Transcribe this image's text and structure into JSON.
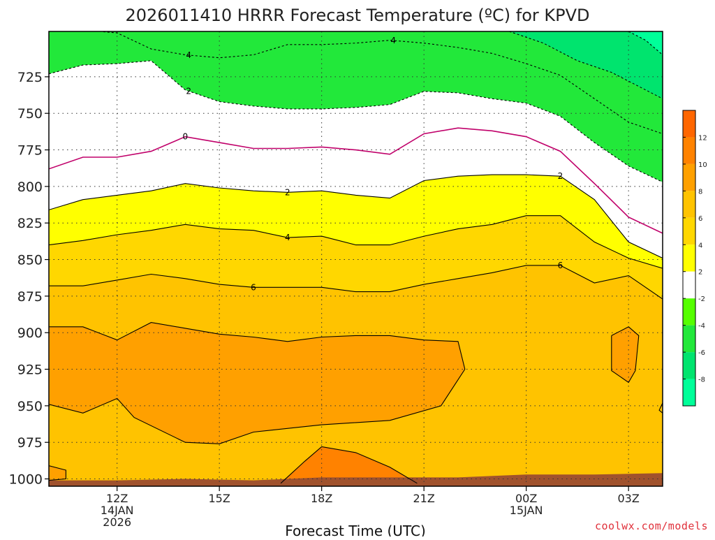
{
  "chart_data": {
    "type": "contour",
    "title": "2026011410 HRRR Forecast Temperature (ºC) for KPVD",
    "xlabel": "Forecast Time (UTC)",
    "ylabel": "",
    "x_axis": {
      "range_hours_since_12Z": [
        -2.0,
        16.0
      ],
      "ticks": [
        {
          "hour": 0,
          "lines": [
            "12Z",
            "14JAN",
            "2026"
          ]
        },
        {
          "hour": 3,
          "lines": [
            "15Z"
          ]
        },
        {
          "hour": 6,
          "lines": [
            "18Z"
          ]
        },
        {
          "hour": 9,
          "lines": [
            "21Z"
          ]
        },
        {
          "hour": 12,
          "lines": [
            "00Z",
            "15JAN"
          ]
        },
        {
          "hour": 15,
          "lines": [
            "03Z"
          ]
        }
      ]
    },
    "y_axis": {
      "quantity": "pressure (hPa)",
      "range_top_to_bottom": [
        694,
        1005
      ],
      "ticks": [
        725,
        750,
        775,
        800,
        825,
        850,
        875,
        900,
        925,
        950,
        975,
        1000
      ]
    },
    "grid": "dotted",
    "colorbar": {
      "placement": "right",
      "bins": [
        {
          "lo": -10,
          "hi": -8,
          "color": "#00ff99"
        },
        {
          "lo": -8,
          "hi": -6,
          "color": "#00e46e"
        },
        {
          "lo": -6,
          "hi": -4,
          "color": "#22e83a"
        },
        {
          "lo": -4,
          "hi": -2,
          "color": "#55ff00"
        },
        {
          "lo": -2,
          "hi": 2,
          "color": "#ffffff"
        },
        {
          "lo": 2,
          "hi": 4,
          "color": "#ffff00"
        },
        {
          "lo": 4,
          "hi": 6,
          "color": "#ffd700"
        },
        {
          "lo": 6,
          "hi": 8,
          "color": "#ffc300"
        },
        {
          "lo": 8,
          "hi": 10,
          "color": "#ffa000"
        },
        {
          "lo": 10,
          "hi": 12,
          "color": "#ff8200"
        },
        {
          "lo": 12,
          "hi": 14,
          "color": "#ff6600"
        }
      ],
      "tick_labels": [
        "-8",
        "-6",
        "-4",
        "-2",
        "2",
        "4",
        "6",
        "8",
        "10",
        "12"
      ]
    },
    "contours": [
      {
        "level": -6,
        "style": "dashed",
        "label": "",
        "points": [
          [
            11.5,
            694
          ],
          [
            12.5,
            702
          ],
          [
            13.5,
            714
          ],
          [
            14.5,
            722
          ],
          [
            15.5,
            734
          ],
          [
            16.0,
            740
          ]
        ]
      },
      {
        "level": -4,
        "style": "dashed",
        "label": "",
        "points": [
          [
            15.0,
            694
          ],
          [
            15.5,
            700
          ],
          [
            16.0,
            710
          ]
        ]
      },
      {
        "level": -4,
        "style": "dashed",
        "label": "4",
        "points": [
          [
            -2.0,
            694
          ],
          [
            -1.0,
            693
          ],
          [
            0.0,
            695
          ],
          [
            1.0,
            706
          ],
          [
            2.0,
            710
          ],
          [
            3.0,
            712
          ],
          [
            4.0,
            710
          ],
          [
            5.0,
            703
          ],
          [
            6.0,
            703
          ],
          [
            7.0,
            702
          ],
          [
            8.0,
            700
          ],
          [
            9.0,
            702
          ],
          [
            10.0,
            705
          ],
          [
            11.0,
            709
          ],
          [
            12.0,
            716
          ],
          [
            13.0,
            724
          ],
          [
            14.0,
            740
          ],
          [
            15.0,
            756
          ],
          [
            16.0,
            764
          ]
        ]
      },
      {
        "level": -2,
        "style": "dashed",
        "label": "2",
        "points": [
          [
            -2.0,
            723
          ],
          [
            -1.0,
            717
          ],
          [
            0.0,
            716
          ],
          [
            1.0,
            714
          ],
          [
            2.0,
            734
          ],
          [
            3.0,
            742
          ],
          [
            4.0,
            745
          ],
          [
            5.0,
            747
          ],
          [
            6.0,
            747
          ],
          [
            7.0,
            746
          ],
          [
            8.0,
            744
          ],
          [
            9.0,
            735
          ],
          [
            10.0,
            736
          ],
          [
            11.0,
            740
          ],
          [
            12.0,
            743
          ],
          [
            13.0,
            752
          ],
          [
            14.0,
            770
          ],
          [
            15.0,
            786
          ],
          [
            16.0,
            797
          ]
        ]
      },
      {
        "level": 0,
        "style": "solid",
        "label": "0",
        "points": [
          [
            -2.0,
            788
          ],
          [
            -1.0,
            780
          ],
          [
            0.0,
            780
          ],
          [
            1.0,
            776
          ],
          [
            2.0,
            766
          ],
          [
            3.0,
            770
          ],
          [
            4.0,
            774
          ],
          [
            5.0,
            774
          ],
          [
            6.0,
            773
          ],
          [
            7.0,
            775
          ],
          [
            8.0,
            778
          ],
          [
            9.0,
            764
          ],
          [
            10.0,
            760
          ],
          [
            11.0,
            762
          ],
          [
            12.0,
            766
          ],
          [
            13.0,
            776
          ],
          [
            14.0,
            798
          ],
          [
            15.0,
            821
          ],
          [
            16.0,
            832
          ]
        ]
      },
      {
        "level": 2,
        "style": "solid",
        "label": "2",
        "points": [
          [
            -2.0,
            816
          ],
          [
            -1.0,
            809
          ],
          [
            0.0,
            806
          ],
          [
            1.0,
            803
          ],
          [
            2.0,
            798
          ],
          [
            3.0,
            801
          ],
          [
            4.0,
            803
          ],
          [
            5.0,
            804
          ],
          [
            6.0,
            803
          ],
          [
            7.0,
            806
          ],
          [
            8.0,
            808
          ],
          [
            9.0,
            796
          ],
          [
            10.0,
            793
          ],
          [
            11.0,
            792
          ],
          [
            12.0,
            792
          ],
          [
            13.0,
            793
          ],
          [
            14.0,
            809
          ],
          [
            15.0,
            838
          ],
          [
            16.0,
            849
          ]
        ]
      },
      {
        "level": 4,
        "style": "solid",
        "label": "4",
        "points": [
          [
            -2.0,
            840
          ],
          [
            -1.0,
            837
          ],
          [
            0.0,
            833
          ],
          [
            1.0,
            830
          ],
          [
            2.0,
            826
          ],
          [
            3.0,
            829
          ],
          [
            4.0,
            830
          ],
          [
            5.0,
            835
          ],
          [
            6.0,
            834
          ],
          [
            7.0,
            840
          ],
          [
            8.0,
            840
          ],
          [
            9.0,
            834
          ],
          [
            10.0,
            829
          ],
          [
            11.0,
            826
          ],
          [
            12.0,
            820
          ],
          [
            13.0,
            820
          ],
          [
            14.0,
            838
          ],
          [
            15.0,
            849
          ],
          [
            16.0,
            856
          ]
        ]
      },
      {
        "level": 6,
        "style": "solid",
        "label": "6",
        "points": [
          [
            -2.0,
            868
          ],
          [
            -1.0,
            868
          ],
          [
            0.0,
            864
          ],
          [
            1.0,
            860
          ],
          [
            2.0,
            863
          ],
          [
            3.0,
            867
          ],
          [
            4.0,
            869
          ],
          [
            5.0,
            869
          ],
          [
            6.0,
            869
          ],
          [
            7.0,
            872
          ],
          [
            8.0,
            872
          ],
          [
            9.0,
            867
          ],
          [
            10.0,
            863
          ],
          [
            11.0,
            859
          ],
          [
            12.0,
            854
          ],
          [
            13.0,
            854
          ],
          [
            14.0,
            866
          ],
          [
            15.0,
            861
          ],
          [
            16.0,
            877
          ]
        ]
      },
      {
        "level": 8,
        "style": "solid",
        "label": "",
        "points": [
          [
            -2.0,
            896
          ],
          [
            -1.0,
            896
          ],
          [
            0.0,
            905
          ],
          [
            1.0,
            893
          ],
          [
            2.0,
            897
          ],
          [
            3.0,
            901
          ],
          [
            4.0,
            903
          ],
          [
            5.0,
            906
          ],
          [
            6.0,
            903
          ],
          [
            7.0,
            902
          ],
          [
            8.0,
            902
          ],
          [
            9.0,
            905
          ],
          [
            10.0,
            906
          ],
          [
            10.2,
            925
          ],
          [
            9.5,
            950
          ],
          [
            8.0,
            960
          ],
          [
            6.0,
            963
          ],
          [
            4.0,
            968
          ],
          [
            3.0,
            976
          ],
          [
            2.0,
            975
          ],
          [
            0.5,
            958
          ],
          [
            0.0,
            945
          ],
          [
            -1.0,
            955
          ],
          [
            -2.0,
            949
          ]
        ]
      },
      {
        "level": 8,
        "style": "solid",
        "label": "",
        "points": [
          [
            14.5,
            902
          ],
          [
            15.0,
            896
          ],
          [
            15.3,
            902
          ],
          [
            15.2,
            926
          ],
          [
            15.0,
            934
          ],
          [
            14.5,
            926
          ],
          [
            14.5,
            902
          ]
        ]
      },
      {
        "level": 10,
        "style": "solid",
        "label": "",
        "points": [
          [
            4.8,
            1003
          ],
          [
            5.5,
            988
          ],
          [
            6.0,
            978
          ],
          [
            7.0,
            982
          ],
          [
            8.0,
            992
          ],
          [
            8.8,
            1003
          ]
        ]
      },
      {
        "level": 8,
        "style": "solid",
        "label": "",
        "points": [
          [
            -2.0,
            991
          ],
          [
            -1.5,
            994
          ],
          [
            -1.5,
            1000
          ],
          [
            -2.0,
            1001
          ]
        ]
      },
      {
        "level": 8,
        "style": "solid",
        "label": "",
        "points": [
          [
            16.0,
            948
          ],
          [
            15.9,
            953
          ],
          [
            16.0,
            955
          ]
        ]
      }
    ],
    "surface": {
      "color": "#a0522d",
      "pressure_by_hour": [
        [
          -2.0,
          1001
        ],
        [
          0.0,
          1001
        ],
        [
          2.0,
          1000
        ],
        [
          4.0,
          1001
        ],
        [
          6.0,
          999
        ],
        [
          8.0,
          999
        ],
        [
          10.0,
          999
        ],
        [
          12.0,
          997
        ],
        [
          14.0,
          997
        ],
        [
          16.0,
          996
        ]
      ]
    }
  },
  "credit": "coolwx.com/models"
}
